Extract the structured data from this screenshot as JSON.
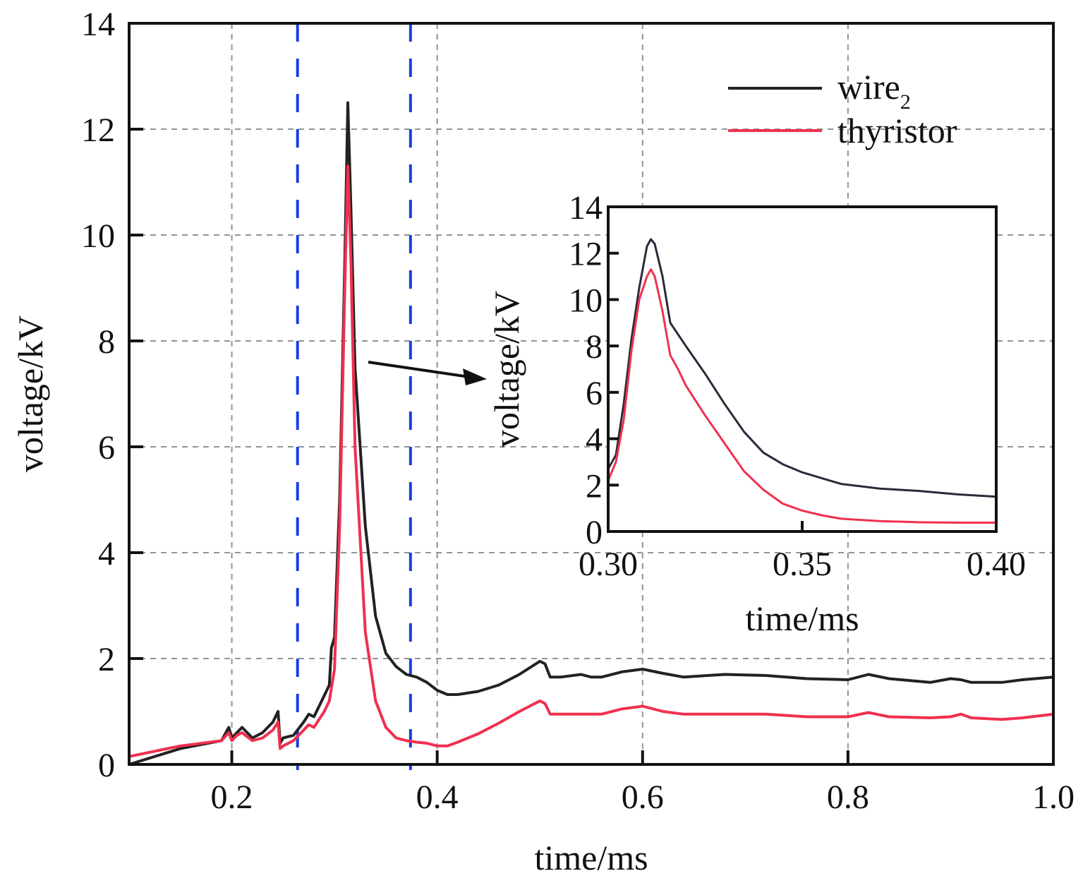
{
  "chart_data": [
    {
      "id": "main",
      "type": "line",
      "xlabel": "time/ms",
      "ylabel": "voltage/kV",
      "xlim": [
        0.1,
        1.0
      ],
      "ylim": [
        0,
        14
      ],
      "xticks": [
        0.2,
        0.4,
        0.6,
        0.8,
        1.0
      ],
      "xtick_labels": [
        "0.2",
        "0.4",
        "0.6",
        "0.8",
        "1.0"
      ],
      "yticks": [
        0,
        2,
        4,
        6,
        8,
        10,
        12,
        14
      ],
      "ytick_labels": [
        "0",
        "2",
        "4",
        "6",
        "8",
        "10",
        "12",
        "14"
      ],
      "grid": true,
      "legend_position": "top-right",
      "vlines": [
        0.264,
        0.374
      ],
      "vline_color": "#1a3ee0",
      "series": [
        {
          "name": "wire",
          "name_subscript": "2",
          "color": "#222222",
          "x": [
            0.1,
            0.15,
            0.19,
            0.197,
            0.2,
            0.205,
            0.21,
            0.22,
            0.23,
            0.24,
            0.245,
            0.247,
            0.25,
            0.26,
            0.27,
            0.275,
            0.28,
            0.29,
            0.295,
            0.297,
            0.3,
            0.305,
            0.31,
            0.313,
            0.316,
            0.32,
            0.33,
            0.34,
            0.35,
            0.36,
            0.37,
            0.38,
            0.39,
            0.4,
            0.41,
            0.42,
            0.44,
            0.46,
            0.48,
            0.5,
            0.505,
            0.51,
            0.52,
            0.54,
            0.55,
            0.56,
            0.58,
            0.6,
            0.62,
            0.64,
            0.68,
            0.72,
            0.76,
            0.8,
            0.82,
            0.84,
            0.88,
            0.9,
            0.91,
            0.92,
            0.95,
            0.97,
            1.0
          ],
          "y": [
            0.0,
            0.3,
            0.45,
            0.7,
            0.5,
            0.6,
            0.7,
            0.5,
            0.6,
            0.8,
            1.0,
            0.4,
            0.5,
            0.55,
            0.8,
            0.95,
            0.9,
            1.3,
            1.5,
            2.2,
            2.4,
            5.0,
            9.5,
            12.5,
            10.5,
            7.5,
            4.5,
            2.8,
            2.1,
            1.85,
            1.7,
            1.65,
            1.55,
            1.4,
            1.32,
            1.32,
            1.38,
            1.5,
            1.7,
            1.95,
            1.9,
            1.65,
            1.65,
            1.7,
            1.65,
            1.65,
            1.75,
            1.8,
            1.72,
            1.65,
            1.7,
            1.68,
            1.62,
            1.6,
            1.7,
            1.62,
            1.55,
            1.62,
            1.6,
            1.55,
            1.55,
            1.6,
            1.65
          ]
        },
        {
          "name": "thyristor",
          "color": "#f0304f",
          "x": [
            0.1,
            0.15,
            0.19,
            0.197,
            0.2,
            0.205,
            0.21,
            0.22,
            0.23,
            0.24,
            0.245,
            0.247,
            0.25,
            0.26,
            0.27,
            0.275,
            0.28,
            0.29,
            0.295,
            0.3,
            0.305,
            0.31,
            0.313,
            0.316,
            0.32,
            0.33,
            0.34,
            0.35,
            0.36,
            0.37,
            0.38,
            0.39,
            0.4,
            0.41,
            0.42,
            0.44,
            0.46,
            0.48,
            0.5,
            0.505,
            0.51,
            0.52,
            0.54,
            0.55,
            0.56,
            0.58,
            0.6,
            0.62,
            0.64,
            0.68,
            0.72,
            0.76,
            0.8,
            0.82,
            0.84,
            0.88,
            0.9,
            0.91,
            0.92,
            0.95,
            0.97,
            1.0
          ],
          "y": [
            0.15,
            0.35,
            0.45,
            0.6,
            0.45,
            0.55,
            0.6,
            0.45,
            0.5,
            0.65,
            0.8,
            0.3,
            0.35,
            0.45,
            0.65,
            0.75,
            0.7,
            1.0,
            1.2,
            1.8,
            4.5,
            9.0,
            11.3,
            9.5,
            6.0,
            2.5,
            1.2,
            0.7,
            0.5,
            0.45,
            0.42,
            0.4,
            0.35,
            0.35,
            0.42,
            0.58,
            0.78,
            1.0,
            1.2,
            1.15,
            0.95,
            0.95,
            0.95,
            0.95,
            0.95,
            1.05,
            1.1,
            1.0,
            0.95,
            0.95,
            0.95,
            0.9,
            0.9,
            0.98,
            0.9,
            0.88,
            0.9,
            0.95,
            0.88,
            0.85,
            0.88,
            0.95
          ]
        }
      ],
      "annotation": "arrow pointing to inset"
    },
    {
      "id": "inset",
      "type": "line",
      "xlabel": "time/ms",
      "ylabel": "voltage/kV",
      "xlim": [
        0.3,
        0.4
      ],
      "ylim": [
        0,
        14
      ],
      "xticks": [
        0.3,
        0.35,
        0.4
      ],
      "xtick_labels": [
        "0.30",
        "0.35",
        "0.40"
      ],
      "yticks": [
        0,
        2,
        4,
        6,
        8,
        10,
        12,
        14
      ],
      "ytick_labels": [
        "0",
        "2",
        "4",
        "6",
        "8",
        "10",
        "12",
        "14"
      ],
      "grid": false,
      "series": [
        {
          "name": "wire2",
          "color": "#2a2a3a",
          "x": [
            0.3,
            0.302,
            0.304,
            0.306,
            0.308,
            0.31,
            0.311,
            0.312,
            0.314,
            0.316,
            0.318,
            0.32,
            0.325,
            0.33,
            0.335,
            0.34,
            0.345,
            0.35,
            0.355,
            0.36,
            0.365,
            0.37,
            0.38,
            0.39,
            0.4
          ],
          "y": [
            2.7,
            3.3,
            5.5,
            8.3,
            10.5,
            12.3,
            12.6,
            12.4,
            11.0,
            9.0,
            8.5,
            8.0,
            6.8,
            5.5,
            4.3,
            3.4,
            2.9,
            2.55,
            2.3,
            2.05,
            1.95,
            1.85,
            1.75,
            1.6,
            1.5
          ]
        },
        {
          "name": "thyristor",
          "color": "#f0304f",
          "x": [
            0.3,
            0.302,
            0.304,
            0.306,
            0.308,
            0.31,
            0.311,
            0.312,
            0.314,
            0.316,
            0.318,
            0.32,
            0.325,
            0.33,
            0.335,
            0.34,
            0.345,
            0.35,
            0.355,
            0.36,
            0.365,
            0.37,
            0.38,
            0.39,
            0.4
          ],
          "y": [
            2.2,
            3.0,
            4.8,
            7.8,
            10.0,
            11.0,
            11.3,
            11.0,
            9.5,
            7.6,
            7.0,
            6.3,
            5.0,
            3.8,
            2.6,
            1.8,
            1.2,
            0.9,
            0.7,
            0.55,
            0.5,
            0.45,
            0.4,
            0.38,
            0.38
          ]
        }
      ]
    }
  ]
}
